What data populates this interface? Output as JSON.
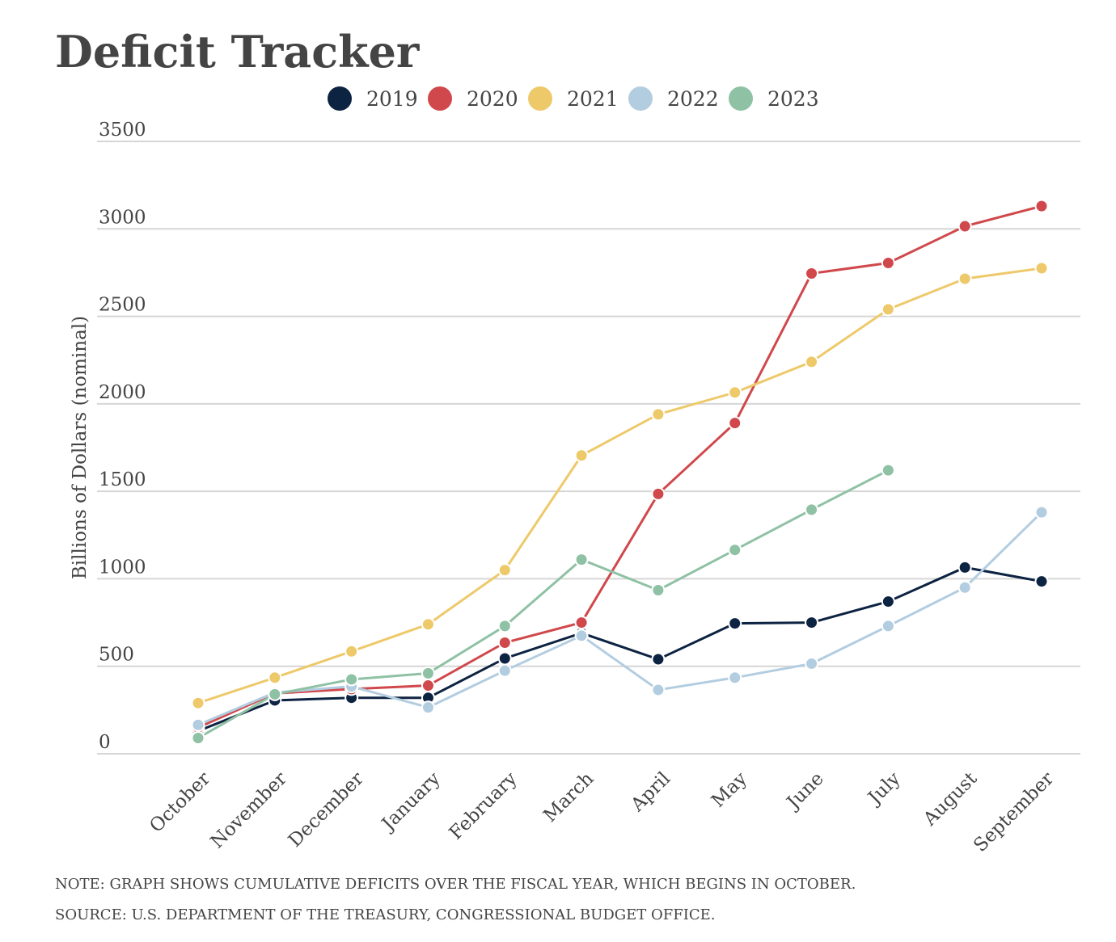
{
  "chart_data": {
    "type": "line",
    "title": "Deficit Tracker",
    "y_label": "Billions of Dollars (nominal)",
    "notes": [
      "NOTE: GRAPH SHOWS CUMULATIVE DEFICITS OVER THE FISCAL YEAR, WHICH BEGINS IN OCTOBER.",
      "SOURCE: U.S. DEPARTMENT OF THE TREASURY, CONGRESSIONAL BUDGET OFFICE."
    ],
    "categories": [
      "October",
      "November",
      "December",
      "January",
      "February",
      "March",
      "April",
      "May",
      "June",
      "July",
      "August",
      "September"
    ],
    "ylim": [
      0,
      3500
    ],
    "yticks": [
      0,
      500,
      1000,
      1500,
      2000,
      2500,
      3000,
      3500
    ],
    "grid": true,
    "legend": "top",
    "series": [
      {
        "name": "2019",
        "color": "#0d2342",
        "values": [
          130,
          305,
          320,
          320,
          545,
          690,
          540,
          745,
          750,
          870,
          1065,
          985
        ]
      },
      {
        "name": "2020",
        "color": "#d0484b",
        "values": [
          150,
          345,
          370,
          390,
          635,
          750,
          1485,
          1890,
          2745,
          2805,
          3015,
          3130
        ]
      },
      {
        "name": "2021",
        "color": "#eec96a",
        "values": [
          290,
          435,
          585,
          740,
          1050,
          1705,
          1940,
          2065,
          2240,
          2540,
          2715,
          2775
        ]
      },
      {
        "name": "2022",
        "color": "#b3cde0",
        "values": [
          165,
          350,
          385,
          265,
          475,
          675,
          365,
          435,
          515,
          730,
          950,
          1380
        ]
      },
      {
        "name": "2023",
        "color": "#8fc1a4",
        "values": [
          90,
          340,
          425,
          460,
          730,
          1110,
          935,
          1165,
          1395,
          1620,
          null,
          null
        ]
      }
    ]
  }
}
